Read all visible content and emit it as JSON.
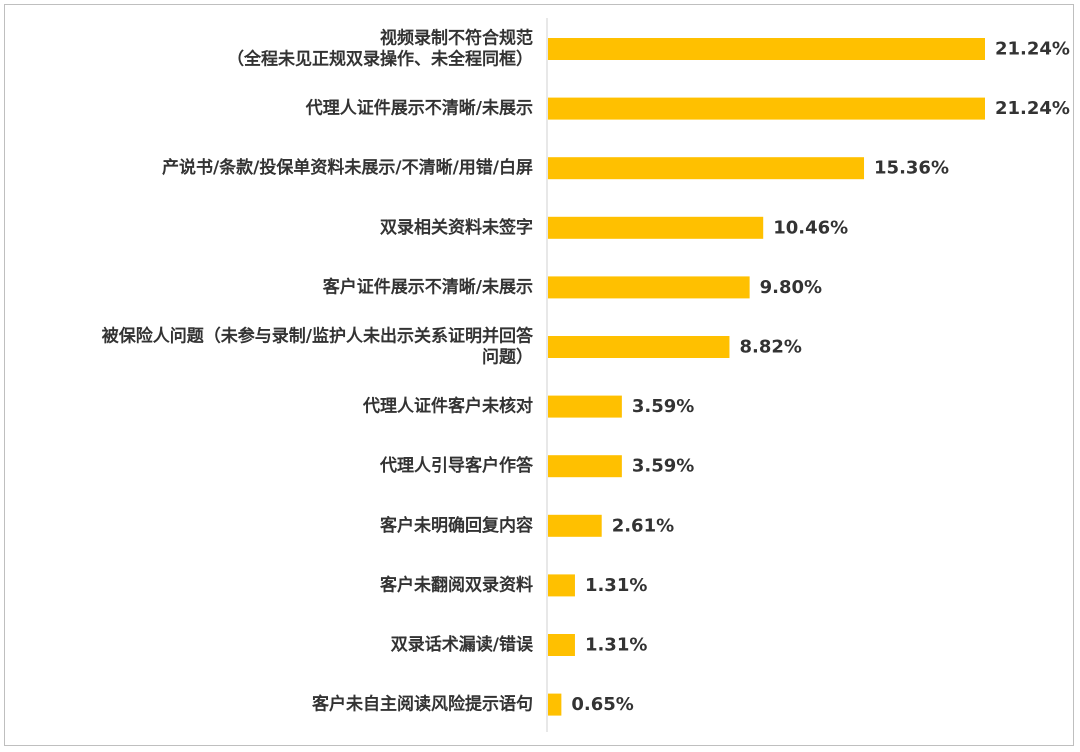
{
  "chart_data": {
    "type": "bar",
    "orientation": "horizontal",
    "title": "",
    "xlabel": "",
    "ylabel": "",
    "bar_color": "#FFC000",
    "grid": false,
    "legend": "none",
    "categories": [
      [
        "视频录制不符合规范",
        "（全程未见正规双录操作、未全程同框）"
      ],
      [
        "代理人证件展示不清晰/未展示"
      ],
      [
        "产说书/条款/投保单资料未展示/不清晰/用错/白屏"
      ],
      [
        "双录相关资料未签字"
      ],
      [
        "客户证件展示不清晰/未展示"
      ],
      [
        "被保险人问题（未参与录制/监护人未出示关系证明并回答",
        "问题）"
      ],
      [
        "代理人证件客户未核对"
      ],
      [
        "代理人引导客户作答"
      ],
      [
        "客户未明确回复内容"
      ],
      [
        "客户未翻阅双录资料"
      ],
      [
        "双录话术漏读/错误"
      ],
      [
        "客户未自主阅读风险提示语句"
      ]
    ],
    "values": [
      21.24,
      21.24,
      15.36,
      10.46,
      9.8,
      8.82,
      3.59,
      3.59,
      2.61,
      1.31,
      1.31,
      0.65
    ],
    "value_labels": [
      "21.24%",
      "21.24%",
      "15.36%",
      "10.46%",
      "9.80%",
      "8.82%",
      "3.59%",
      "3.59%",
      "2.61%",
      "1.31%",
      "1.31%",
      "0.65%"
    ]
  }
}
